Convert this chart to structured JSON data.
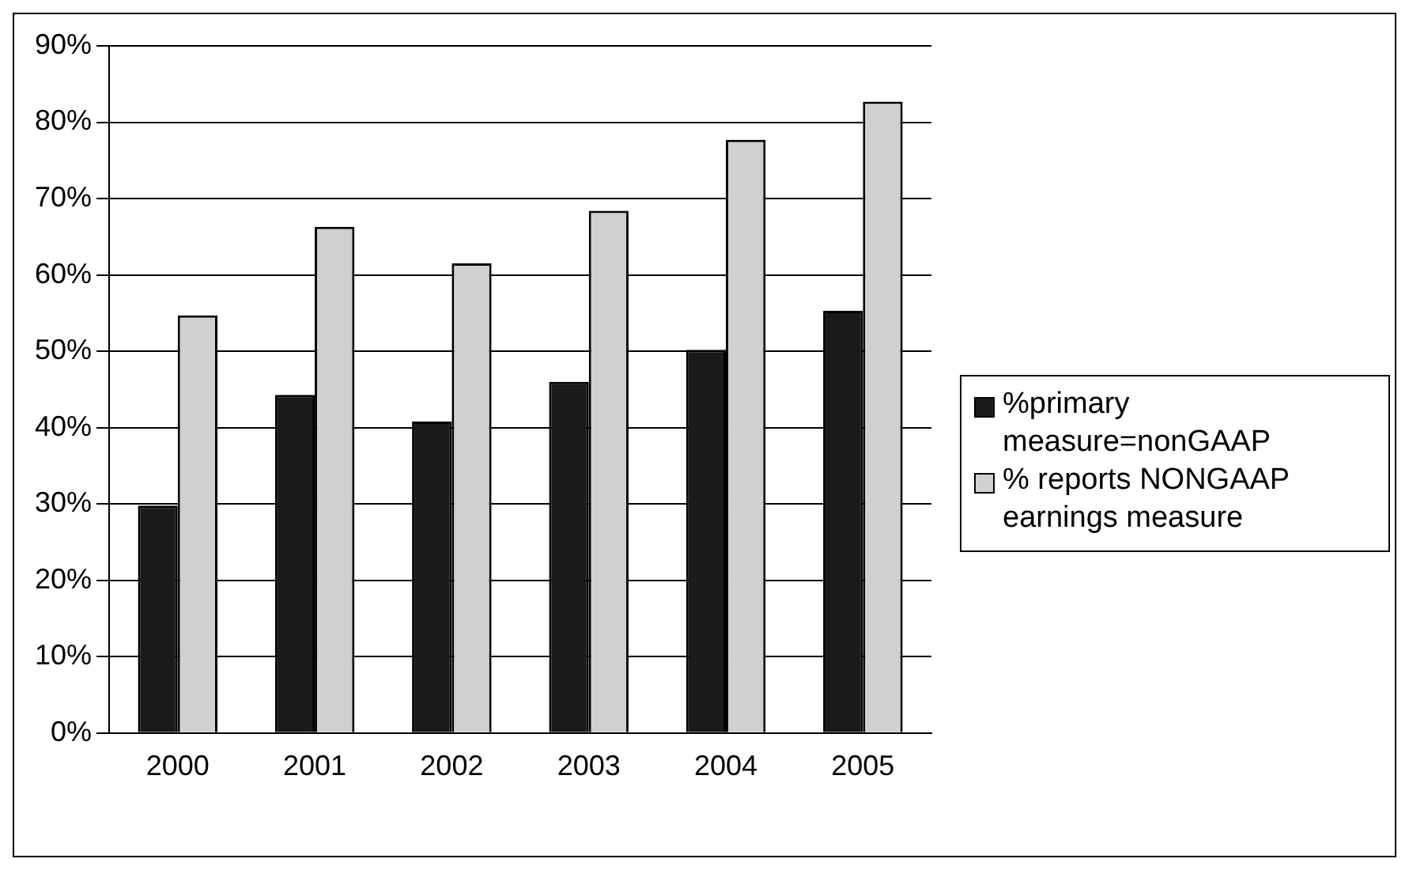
{
  "chart_data": {
    "type": "bar",
    "categories": [
      "2000",
      "2001",
      "2002",
      "2003",
      "2004",
      "2005"
    ],
    "series": [
      {
        "name": "%primary measure=nonGAAP",
        "color": "#1a1a1a",
        "values": [
          29.8,
          44.3,
          40.8,
          46,
          50.2,
          55.3
        ]
      },
      {
        "name": "% reports NONGAAP earnings measure",
        "color": "#d0d0d0",
        "values": [
          54.7,
          66.3,
          61.5,
          68.4,
          77.7,
          82.7
        ]
      }
    ],
    "ylim": [
      0,
      90
    ],
    "yticks": [
      {
        "value": 0,
        "label": "0%"
      },
      {
        "value": 10,
        "label": "10%"
      },
      {
        "value": 20,
        "label": "20%"
      },
      {
        "value": 30,
        "label": "30%"
      },
      {
        "value": 40,
        "label": "40%"
      },
      {
        "value": 50,
        "label": "50%"
      },
      {
        "value": 60,
        "label": "60%"
      },
      {
        "value": 70,
        "label": "70%"
      },
      {
        "value": 80,
        "label": "80%"
      },
      {
        "value": 90,
        "label": "90%"
      }
    ],
    "grid": "y",
    "legend": "right"
  }
}
